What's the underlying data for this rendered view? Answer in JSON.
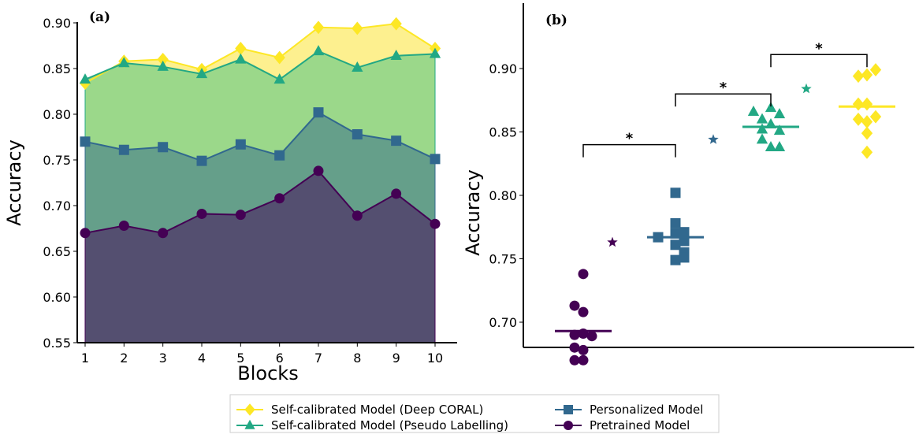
{
  "chart_data": [
    {
      "type": "area",
      "panel_label": "(a)",
      "xlabel": "Blocks",
      "ylabel": "Accuracy",
      "x": [
        1,
        2,
        3,
        4,
        5,
        6,
        7,
        8,
        9,
        10
      ],
      "xticks": [
        "1",
        "2",
        "3",
        "4",
        "5",
        "6",
        "7",
        "8",
        "9",
        "10"
      ],
      "ylim": [
        0.55,
        0.9
      ],
      "yticks": [
        "0.55",
        "0.60",
        "0.65",
        "0.70",
        "0.75",
        "0.80",
        "0.85",
        "0.90"
      ],
      "series": [
        {
          "name": "Self-calibrated Model (Deep CORAL)",
          "marker": "diamond",
          "color": "#fde725",
          "fill": "#fdf08f",
          "values": [
            0.834,
            0.858,
            0.86,
            0.849,
            0.872,
            0.862,
            0.895,
            0.894,
            0.899,
            0.872
          ]
        },
        {
          "name": "Self-calibrated Model (Pseudo Labelling)",
          "marker": "triangle",
          "color": "#22a884",
          "fill": "#9bd88a",
          "values": [
            0.838,
            0.856,
            0.852,
            0.844,
            0.86,
            0.838,
            0.869,
            0.851,
            0.864,
            0.866
          ]
        },
        {
          "name": "Personalized Model",
          "marker": "square",
          "color": "#31688e",
          "fill": "#659f8a",
          "values": [
            0.77,
            0.761,
            0.764,
            0.749,
            0.767,
            0.755,
            0.802,
            0.778,
            0.771,
            0.751
          ]
        },
        {
          "name": "Pretrained Model",
          "marker": "circle",
          "color": "#440154",
          "fill": "#544f70",
          "values": [
            0.67,
            0.678,
            0.67,
            0.691,
            0.69,
            0.708,
            0.738,
            0.689,
            0.713,
            0.68
          ]
        }
      ]
    },
    {
      "type": "scatter",
      "panel_label": "(b)",
      "ylabel": "Accuracy",
      "yticks": [
        "0.70",
        "0.75",
        "0.80",
        "0.85",
        "0.90"
      ],
      "groups": [
        {
          "name": "Pretrained Model",
          "mean": 0.693,
          "star": 0.763
        },
        {
          "name": "Personalized Model",
          "mean": 0.767,
          "star": 0.844
        },
        {
          "name": "Self-calibrated Model (Pseudo Labelling)",
          "mean": 0.854,
          "star": 0.884
        },
        {
          "name": "Self-calibrated Model (Deep CORAL)",
          "mean": 0.87,
          "star": null
        }
      ],
      "significance": [
        {
          "from": 0,
          "to": 1,
          "level": 0.84,
          "label": "*"
        },
        {
          "from": 1,
          "to": 2,
          "level": 0.88,
          "label": "*"
        },
        {
          "from": 2,
          "to": 3,
          "level": 0.911,
          "label": "*"
        }
      ]
    }
  ],
  "legend": {
    "placement": "bottom-center",
    "items": [
      "Self-calibrated Model (Deep CORAL)",
      "Self-calibrated Model (Pseudo Labelling)",
      "Personalized Model",
      "Pretrained Model"
    ]
  }
}
